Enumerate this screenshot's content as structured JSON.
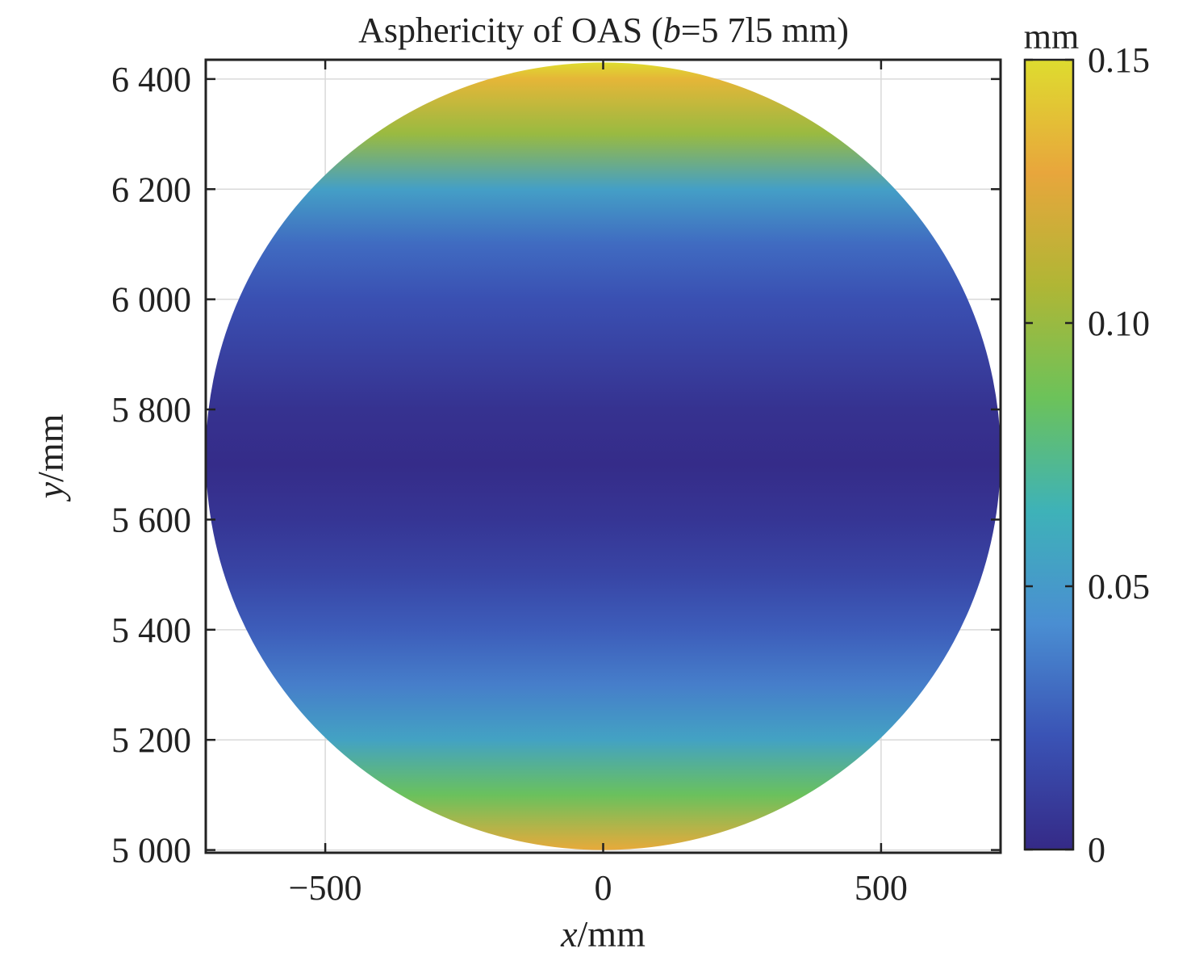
{
  "chart_data": {
    "type": "heatmap",
    "title": {
      "prefix": "Asphericity of OAS (",
      "italic": "b",
      "suffix": "=5 7l5 mm)"
    },
    "xlabel": {
      "italic": "x",
      "rest": "/mm"
    },
    "ylabel": {
      "italic": "y",
      "rest": "/mm"
    },
    "xlim": [
      -715,
      715
    ],
    "ylim": [
      4995,
      6435
    ],
    "xticks": [
      -500,
      0,
      500
    ],
    "xtick_labels": [
      "−500",
      "0",
      "500"
    ],
    "yticks": [
      5000,
      5200,
      5400,
      5600,
      5800,
      6000,
      6200,
      6400
    ],
    "ytick_labels": [
      "5 000",
      "5 200",
      "5 400",
      "5 600",
      "5 800",
      "6 000",
      "6 200",
      "6 400"
    ],
    "grid": true,
    "aperture": {
      "center_x": 0,
      "center_y": 5715,
      "radius": 715
    },
    "colorbar": {
      "unit_label": "mm",
      "min": 0,
      "max": 0.15,
      "ticks": [
        0,
        0.05,
        0.1,
        0.15
      ],
      "tick_labels": [
        "0",
        "0.05",
        "0.10",
        "0.15"
      ],
      "colormap": [
        "#352a87",
        "#3a53b5",
        "#4a8ed2",
        "#3eb2b8",
        "#6cc25a",
        "#b0b635",
        "#e8a63c",
        "#dedc2f"
      ]
    },
    "z_values_by_y": [
      {
        "y": 5000,
        "z": 0.13
      },
      {
        "y": 5100,
        "z": 0.085
      },
      {
        "y": 5200,
        "z": 0.055
      },
      {
        "y": 5300,
        "z": 0.037
      },
      {
        "y": 5400,
        "z": 0.025
      },
      {
        "y": 5500,
        "z": 0.014
      },
      {
        "y": 5600,
        "z": 0.006
      },
      {
        "y": 5700,
        "z": 0.001
      },
      {
        "y": 5800,
        "z": 0.004
      },
      {
        "y": 5900,
        "z": 0.012
      },
      {
        "y": 6000,
        "z": 0.02
      },
      {
        "y": 6100,
        "z": 0.03
      },
      {
        "y": 6200,
        "z": 0.053
      },
      {
        "y": 6300,
        "z": 0.1
      },
      {
        "y": 6400,
        "z": 0.135
      },
      {
        "y": 6430,
        "z": 0.15
      }
    ]
  }
}
